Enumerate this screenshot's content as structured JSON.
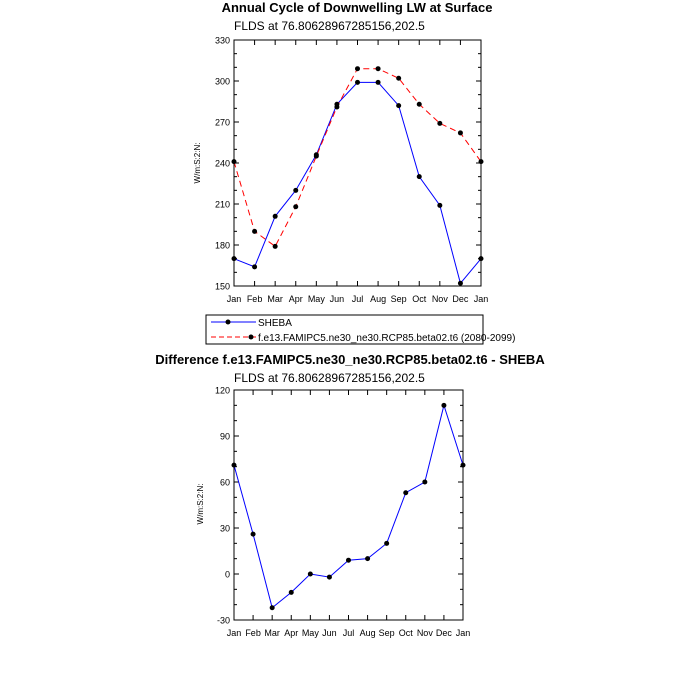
{
  "chart_data": [
    {
      "type": "line",
      "title": "Annual Cycle of Downwelling LW at Surface",
      "subtitle": "FLDS at 76.80628967285156,202.5",
      "xlabel": "",
      "ylabel": "W/m:S:2:N:",
      "categories": [
        "Jan",
        "Feb",
        "Mar",
        "Apr",
        "May",
        "Jun",
        "Jul",
        "Aug",
        "Sep",
        "Oct",
        "Nov",
        "Dec",
        "Jan"
      ],
      "ylim": [
        150,
        330
      ],
      "yticks": [
        150,
        180,
        210,
        240,
        270,
        300,
        330
      ],
      "grid": false,
      "legend_position": "bottom",
      "series": [
        {
          "name": "SHEBA",
          "color": "#0000ff",
          "dash": "solid",
          "values": [
            170,
            164,
            201,
            220,
            246,
            283,
            299,
            299,
            282,
            230,
            209,
            152,
            170
          ]
        },
        {
          "name": "f.e13.FAMIPC5.ne30_ne30.RCP85.beta02.t6 (2080-2099)",
          "color": "#ff0000",
          "dash": "dashed",
          "values": [
            241,
            190,
            179,
            208,
            245,
            281,
            309,
            309,
            302,
            283,
            269,
            262,
            241
          ]
        }
      ]
    },
    {
      "type": "line",
      "title": "Difference f.e13.FAMIPC5.ne30_ne30.RCP85.beta02.t6 - SHEBA",
      "subtitle": "FLDS at 76.80628967285156,202.5",
      "xlabel": "",
      "ylabel": "W/m:S:2:N:",
      "categories": [
        "Jan",
        "Feb",
        "Mar",
        "Apr",
        "May",
        "Jun",
        "Jul",
        "Aug",
        "Sep",
        "Oct",
        "Nov",
        "Dec",
        "Jan"
      ],
      "ylim": [
        -30,
        120
      ],
      "yticks": [
        -30,
        0,
        30,
        60,
        90,
        120
      ],
      "grid": false,
      "series": [
        {
          "color": "#0000ff",
          "dash": "solid",
          "values": [
            71,
            26,
            -22,
            -12,
            0,
            -2,
            9,
            10,
            20,
            53,
            60,
            110,
            71
          ]
        }
      ]
    }
  ]
}
